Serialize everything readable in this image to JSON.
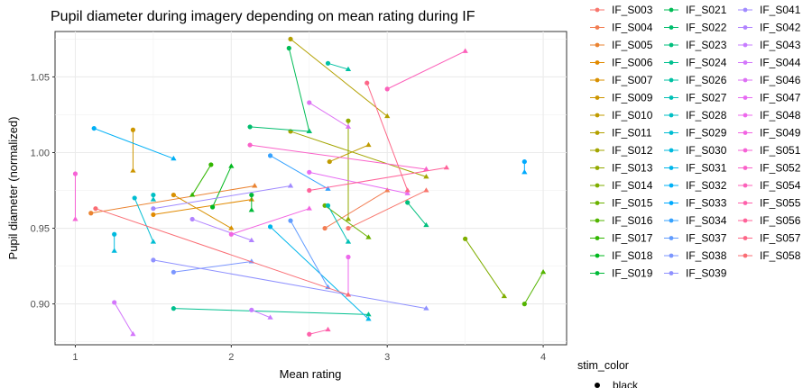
{
  "chart_data": {
    "type": "line",
    "title": "Pupil diameter during imagery depending on mean rating during IF",
    "xlabel": "Mean rating",
    "ylabel": "Pupil diameter (normalized)",
    "xlim": [
      0.87,
      4.15
    ],
    "ylim": [
      0.873,
      1.08
    ],
    "xticks": [
      1,
      2,
      3,
      4
    ],
    "yticks": [
      0.9,
      0.95,
      1.0,
      1.05
    ],
    "ytick_labels": [
      "0.90",
      "0.95",
      "1.00",
      "1.05"
    ],
    "grid": true,
    "legend_title": "stim_color",
    "legend_shape_entry": "black",
    "series": [
      {
        "name": "IF_S003",
        "color": "#F8766D",
        "points": [
          [
            2.75,
            0.95
          ],
          [
            3.25,
            0.975
          ]
        ]
      },
      {
        "name": "IF_S004",
        "color": "#F27D52",
        "points": [
          [
            2.6,
            0.95
          ],
          [
            3.0,
            0.975
          ]
        ]
      },
      {
        "name": "IF_S005",
        "color": "#EA8331",
        "points": [
          [
            1.1,
            0.96
          ],
          [
            2.15,
            0.978
          ]
        ]
      },
      {
        "name": "IF_S006",
        "color": "#E18A00",
        "points": [
          [
            1.5,
            0.959
          ],
          [
            2.13,
            0.969
          ]
        ]
      },
      {
        "name": "IF_S007",
        "color": "#D89000",
        "points": [
          [
            1.63,
            0.972
          ],
          [
            2.0,
            0.95
          ]
        ]
      },
      {
        "name": "IF_S009",
        "color": "#CD9600",
        "points": [
          [
            1.37,
            1.015
          ],
          [
            1.37,
            0.988
          ]
        ]
      },
      {
        "name": "IF_S010",
        "color": "#C09B00",
        "points": [
          [
            2.63,
            0.994
          ],
          [
            2.88,
            1.005
          ]
        ]
      },
      {
        "name": "IF_S011",
        "color": "#B3A000",
        "points": [
          [
            2.38,
            1.075
          ],
          [
            3.0,
            1.024
          ]
        ]
      },
      {
        "name": "IF_S012",
        "color": "#A3A500",
        "points": [
          [
            2.38,
            1.014
          ],
          [
            3.25,
            0.984
          ]
        ]
      },
      {
        "name": "IF_S013",
        "color": "#93AA00",
        "points": [
          [
            2.75,
            1.021
          ],
          [
            2.75,
            0.956
          ]
        ]
      },
      {
        "name": "IF_S014",
        "color": "#7FAE00",
        "points": [
          [
            3.5,
            0.943
          ],
          [
            3.75,
            0.905
          ]
        ]
      },
      {
        "name": "IF_S015",
        "color": "#6BB100",
        "points": [
          [
            2.6,
            0.965
          ],
          [
            2.88,
            0.944
          ]
        ]
      },
      {
        "name": "IF_S016",
        "color": "#53B400",
        "points": [
          [
            3.88,
            0.9
          ],
          [
            4.0,
            0.921
          ]
        ]
      },
      {
        "name": "IF_S017",
        "color": "#32B600",
        "points": [
          [
            1.87,
            0.992
          ],
          [
            1.75,
            0.972
          ]
        ]
      },
      {
        "name": "IF_S018",
        "color": "#00B81E",
        "points": [
          [
            1.88,
            0.964
          ],
          [
            2.0,
            0.991
          ]
        ]
      },
      {
        "name": "IF_S019",
        "color": "#00BA38",
        "points": [
          [
            2.13,
            0.972
          ],
          [
            2.13,
            0.962
          ]
        ]
      },
      {
        "name": "IF_S021",
        "color": "#00BC56",
        "points": [
          [
            2.37,
            1.069
          ],
          [
            2.5,
            1.014
          ]
        ]
      },
      {
        "name": "IF_S022",
        "color": "#00BD6D",
        "points": [
          [
            2.12,
            1.017
          ],
          [
            2.5,
            1.014
          ]
        ]
      },
      {
        "name": "IF_S023",
        "color": "#00BF7D",
        "points": [
          [
            3.13,
            0.967
          ],
          [
            3.25,
            0.952
          ]
        ]
      },
      {
        "name": "IF_S024",
        "color": "#00C08F",
        "points": [
          [
            1.63,
            0.897
          ],
          [
            2.88,
            0.893
          ]
        ]
      },
      {
        "name": "IF_S026",
        "color": "#00C1A3",
        "points": [
          [
            2.62,
            1.059
          ],
          [
            2.75,
            1.055
          ]
        ]
      },
      {
        "name": "IF_S027",
        "color": "#00C0B5",
        "points": [
          [
            2.62,
            0.965
          ],
          [
            2.75,
            0.941
          ]
        ]
      },
      {
        "name": "IF_S028",
        "color": "#00BFC4",
        "points": [
          [
            1.5,
            0.972
          ],
          [
            1.5,
            0.969
          ]
        ]
      },
      {
        "name": "IF_S029",
        "color": "#00BDD2",
        "points": [
          [
            1.38,
            0.97
          ],
          [
            1.5,
            0.941
          ]
        ]
      },
      {
        "name": "IF_S030",
        "color": "#00BADE",
        "points": [
          [
            1.25,
            0.946
          ],
          [
            1.25,
            0.935
          ]
        ]
      },
      {
        "name": "IF_S031",
        "color": "#00B6EB",
        "points": [
          [
            2.25,
            0.951
          ],
          [
            2.88,
            0.89
          ]
        ]
      },
      {
        "name": "IF_S032",
        "color": "#00B0F6",
        "points": [
          [
            1.12,
            1.016
          ],
          [
            1.63,
            0.996
          ]
        ]
      },
      {
        "name": "IF_S033",
        "color": "#00AAFE",
        "points": [
          [
            3.88,
            0.994
          ],
          [
            3.88,
            0.987
          ]
        ]
      },
      {
        "name": "IF_S034",
        "color": "#35A2FF",
        "points": [
          [
            2.25,
            0.998
          ],
          [
            2.62,
            0.976
          ]
        ]
      },
      {
        "name": "IF_S037",
        "color": "#619CFF",
        "points": [
          [
            2.38,
            0.955
          ],
          [
            2.62,
            0.911
          ]
        ]
      },
      {
        "name": "IF_S038",
        "color": "#7B96FF",
        "points": [
          [
            1.63,
            0.921
          ],
          [
            2.13,
            0.928
          ]
        ]
      },
      {
        "name": "IF_S039",
        "color": "#8F91FF",
        "points": [
          [
            1.5,
            0.929
          ],
          [
            3.25,
            0.897
          ]
        ]
      },
      {
        "name": "IF_S041",
        "color": "#A08AFF",
        "points": [
          [
            1.5,
            0.963
          ],
          [
            2.38,
            0.978
          ]
        ]
      },
      {
        "name": "IF_S042",
        "color": "#B183FF",
        "points": [
          [
            1.75,
            0.956
          ],
          [
            2.13,
            0.942
          ]
        ]
      },
      {
        "name": "IF_S043",
        "color": "#C77CFF",
        "points": [
          [
            2.13,
            0.896
          ],
          [
            2.25,
            0.891
          ]
        ]
      },
      {
        "name": "IF_S044",
        "color": "#D377FB",
        "points": [
          [
            1.25,
            0.901
          ],
          [
            1.37,
            0.88
          ]
        ]
      },
      {
        "name": "IF_S046",
        "color": "#DD71F4",
        "points": [
          [
            2.5,
            1.033
          ],
          [
            2.75,
            1.017
          ]
        ]
      },
      {
        "name": "IF_S047",
        "color": "#E76BF3",
        "points": [
          [
            2.5,
            0.987
          ],
          [
            3.13,
            0.973
          ]
        ]
      },
      {
        "name": "IF_S048",
        "color": "#ED68EC",
        "points": [
          [
            2.75,
            0.931
          ],
          [
            2.75,
            0.906
          ]
        ]
      },
      {
        "name": "IF_S049",
        "color": "#F264E2",
        "points": [
          [
            2.0,
            0.946
          ],
          [
            2.5,
            0.963
          ]
        ]
      },
      {
        "name": "IF_S051",
        "color": "#F663D6",
        "points": [
          [
            1.0,
            0.986
          ],
          [
            1.0,
            0.956
          ]
        ]
      },
      {
        "name": "IF_S052",
        "color": "#FA62C9",
        "points": [
          [
            2.12,
            1.005
          ],
          [
            3.25,
            0.989
          ]
        ]
      },
      {
        "name": "IF_S054",
        "color": "#FC61BA",
        "points": [
          [
            3.0,
            1.042
          ],
          [
            3.5,
            1.067
          ]
        ]
      },
      {
        "name": "IF_S055",
        "color": "#FE61AB",
        "points": [
          [
            2.5,
            0.88
          ],
          [
            2.62,
            0.883
          ]
        ]
      },
      {
        "name": "IF_S056",
        "color": "#FF639A",
        "points": [
          [
            2.5,
            0.975
          ],
          [
            3.38,
            0.99
          ]
        ]
      },
      {
        "name": "IF_S057",
        "color": "#FD6788",
        "points": [
          [
            2.87,
            1.046
          ],
          [
            3.13,
            0.975
          ]
        ]
      },
      {
        "name": "IF_S058",
        "color": "#FA6D74",
        "points": [
          [
            1.13,
            0.963
          ],
          [
            2.75,
            0.906
          ]
        ]
      }
    ]
  }
}
